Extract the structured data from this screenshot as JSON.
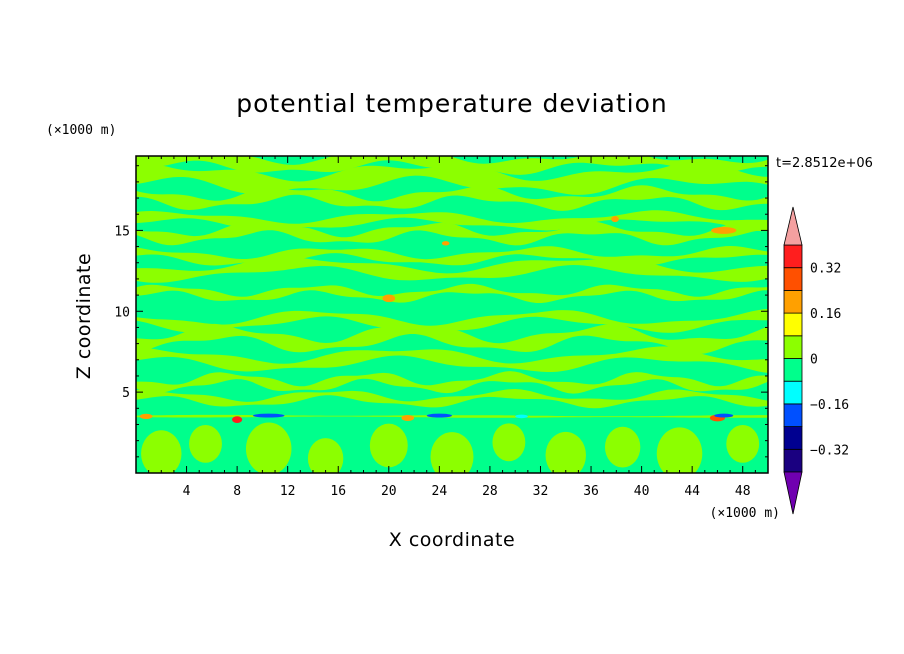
{
  "chart_data": {
    "type": "heatmap",
    "title": "potential temperature deviation",
    "xlabel": "X coordinate",
    "ylabel": "Z coordinate",
    "x_unit": "(×1000 m)",
    "y_unit": "(×1000 m)",
    "time_label": "t=2.8512e+06",
    "xlim": [
      0,
      50
    ],
    "ylim": [
      0,
      19.6
    ],
    "x_ticks": [
      4,
      8,
      12,
      16,
      20,
      24,
      28,
      32,
      36,
      40,
      44,
      48
    ],
    "y_ticks": [
      5,
      10,
      15
    ],
    "colorbar": {
      "levels": [
        -0.4,
        -0.32,
        -0.24,
        -0.16,
        -0.08,
        0,
        0.08,
        0.16,
        0.24,
        0.32,
        0.4
      ],
      "tick_labels": [
        "−0.32",
        "−0.16",
        "0",
        "0.16",
        "0.32"
      ],
      "tick_values": [
        -0.32,
        -0.16,
        0,
        0.16,
        0.32
      ],
      "colors": [
        "#1a0080",
        "#000090",
        "#0050ff",
        "#00ffff",
        "#00ff8c",
        "#8cff00",
        "#ffff00",
        "#ffa000",
        "#ff5000",
        "#ff1e1e"
      ],
      "under_color": "#7000b0",
      "over_color": "#f4a0a0"
    },
    "background_color": "#00ff8c",
    "positive_band_color": "#8cff00",
    "bands": [
      {
        "y": 19.2,
        "thick": 0.5,
        "amp": 0.3,
        "wavelength": 17,
        "phase": 0.2
      },
      {
        "y": 18.2,
        "thick": 0.7,
        "amp": 0.4,
        "wavelength": 21,
        "phase": 1.1
      },
      {
        "y": 17.0,
        "thick": 0.45,
        "amp": 0.35,
        "wavelength": 14,
        "phase": 2.3
      },
      {
        "y": 15.6,
        "thick": 0.35,
        "amp": 0.3,
        "wavelength": 19,
        "phase": 0.7
      },
      {
        "y": 14.8,
        "thick": 0.4,
        "amp": 0.35,
        "wavelength": 13,
        "phase": 3.0
      },
      {
        "y": 13.4,
        "thick": 0.35,
        "amp": 0.3,
        "wavelength": 16,
        "phase": 1.7
      },
      {
        "y": 12.6,
        "thick": 0.45,
        "amp": 0.4,
        "wavelength": 22,
        "phase": 4.1
      },
      {
        "y": 11.1,
        "thick": 0.3,
        "amp": 0.3,
        "wavelength": 12,
        "phase": 0.4
      },
      {
        "y": 9.4,
        "thick": 0.35,
        "amp": 0.4,
        "wavelength": 18,
        "phase": 2.8
      },
      {
        "y": 8.3,
        "thick": 0.5,
        "amp": 0.45,
        "wavelength": 15,
        "phase": 5.0
      },
      {
        "y": 7.0,
        "thick": 0.45,
        "amp": 0.4,
        "wavelength": 20,
        "phase": 1.3
      },
      {
        "y": 5.6,
        "thick": 0.35,
        "amp": 0.35,
        "wavelength": 11,
        "phase": 3.6
      },
      {
        "y": 4.6,
        "thick": 0.3,
        "amp": 0.3,
        "wavelength": 14,
        "phase": 0.9
      },
      {
        "y": 3.5,
        "thick": 0.08,
        "amp": 0.02,
        "wavelength": 50,
        "phase": 0.0
      }
    ],
    "low_blobs": [
      {
        "x": 2.0,
        "y": 1.2,
        "r": 1.6
      },
      {
        "x": 5.5,
        "y": 1.8,
        "r": 1.3
      },
      {
        "x": 10.5,
        "y": 1.5,
        "r": 1.8
      },
      {
        "x": 15.0,
        "y": 0.9,
        "r": 1.4
      },
      {
        "x": 20.0,
        "y": 1.7,
        "r": 1.5
      },
      {
        "x": 25.0,
        "y": 1.0,
        "r": 1.7
      },
      {
        "x": 29.5,
        "y": 1.9,
        "r": 1.3
      },
      {
        "x": 34.0,
        "y": 1.1,
        "r": 1.6
      },
      {
        "x": 38.5,
        "y": 1.6,
        "r": 1.4
      },
      {
        "x": 43.0,
        "y": 1.2,
        "r": 1.8
      },
      {
        "x": 48.0,
        "y": 1.8,
        "r": 1.3
      }
    ],
    "hot_spots": [
      {
        "x": 20.0,
        "y": 10.8,
        "w": 1.0,
        "h": 0.35,
        "level": 0.16
      },
      {
        "x": 37.9,
        "y": 15.7,
        "w": 0.6,
        "h": 0.25,
        "level": 0.16
      },
      {
        "x": 46.5,
        "y": 15.0,
        "w": 2.0,
        "h": 0.3,
        "level": 0.16
      },
      {
        "x": 24.5,
        "y": 14.2,
        "w": 0.6,
        "h": 0.15,
        "level": 0.16
      },
      {
        "x": 0.8,
        "y": 3.5,
        "w": 1.0,
        "h": 0.2,
        "level": 0.16
      },
      {
        "x": 8.0,
        "y": 3.3,
        "w": 0.8,
        "h": 0.3,
        "level": 0.32
      },
      {
        "x": 21.5,
        "y": 3.4,
        "w": 1.0,
        "h": 0.25,
        "level": 0.16
      },
      {
        "x": 46.0,
        "y": 3.4,
        "w": 1.2,
        "h": 0.3,
        "level": 0.24
      }
    ],
    "cold_spots": [
      {
        "x": 10.5,
        "y": 3.55,
        "w": 2.5,
        "h": 0.12,
        "level": -0.24
      },
      {
        "x": 24.0,
        "y": 3.55,
        "w": 2.0,
        "h": 0.12,
        "level": -0.24
      },
      {
        "x": 30.5,
        "y": 3.5,
        "w": 1.0,
        "h": 0.1,
        "level": -0.16
      },
      {
        "x": 46.5,
        "y": 3.55,
        "w": 1.5,
        "h": 0.12,
        "level": -0.24
      }
    ]
  }
}
